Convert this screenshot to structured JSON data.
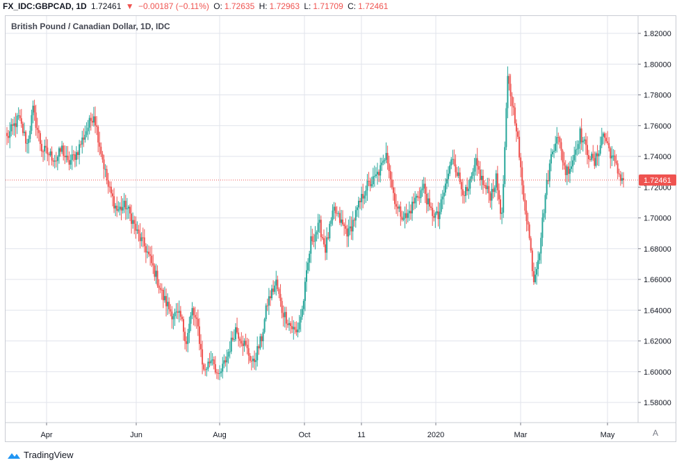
{
  "header": {
    "symbol": "FX_IDC:GBPCAD, 1D",
    "last": "1.72461",
    "change_arrow": "▼",
    "change": "−0.00187 (−0.11%)",
    "open_label": "O:",
    "open": "1.72635",
    "high_label": "H:",
    "high": "1.72963",
    "low_label": "L:",
    "low": "1.71709",
    "close_label": "C:",
    "close": "1.72461"
  },
  "legend": "British Pound / Canadian Dollar, 1D, IDC",
  "price_badge": "1.72461",
  "autoscale_label": "A",
  "footer": {
    "brand": "TradingView",
    "logo_icon": "tradingview-logo-icon"
  },
  "colors": {
    "up": "#26a69a",
    "down": "#ef5350",
    "grid": "#e0e3eb",
    "badge": "#ef5350"
  },
  "chart_data": {
    "type": "candlestick",
    "title": "British Pound / Canadian Dollar, 1D, IDC",
    "xlabel": "",
    "ylabel": "",
    "x_tick_labels": [
      "Apr",
      "Jun",
      "Aug",
      "Oct",
      "11",
      "2020",
      "Mar",
      "May"
    ],
    "y_tick_labels": [
      "1.82000",
      "1.80000",
      "1.78000",
      "1.76000",
      "1.74000",
      "1.72000",
      "1.70000",
      "1.68000",
      "1.66000",
      "1.64000",
      "1.62000",
      "1.60000",
      "1.58000"
    ],
    "ylim": [
      1.57,
      1.826
    ],
    "grid": true,
    "last_price": 1.72461,
    "date_range": [
      "2019-03",
      "2020-05"
    ],
    "close_path": [
      [
        0,
        1.752
      ],
      [
        8,
        1.765
      ],
      [
        14,
        1.748
      ],
      [
        18,
        1.77
      ],
      [
        24,
        1.745
      ],
      [
        28,
        1.742
      ],
      [
        34,
        1.738
      ],
      [
        38,
        1.745
      ],
      [
        42,
        1.735
      ],
      [
        48,
        1.742
      ],
      [
        54,
        1.755
      ],
      [
        60,
        1.768
      ],
      [
        64,
        1.748
      ],
      [
        70,
        1.72
      ],
      [
        76,
        1.705
      ],
      [
        82,
        1.708
      ],
      [
        86,
        1.7
      ],
      [
        90,
        1.69
      ],
      [
        96,
        1.68
      ],
      [
        102,
        1.665
      ],
      [
        108,
        1.648
      ],
      [
        114,
        1.638
      ],
      [
        120,
        1.635
      ],
      [
        124,
        1.62
      ],
      [
        128,
        1.64
      ],
      [
        132,
        1.628
      ],
      [
        136,
        1.6
      ],
      [
        142,
        1.61
      ],
      [
        146,
        1.595
      ],
      [
        152,
        1.61
      ],
      [
        158,
        1.628
      ],
      [
        164,
        1.618
      ],
      [
        170,
        1.605
      ],
      [
        176,
        1.622
      ],
      [
        180,
        1.645
      ],
      [
        186,
        1.658
      ],
      [
        190,
        1.64
      ],
      [
        196,
        1.63
      ],
      [
        200,
        1.625
      ],
      [
        204,
        1.64
      ],
      [
        210,
        1.685
      ],
      [
        216,
        1.695
      ],
      [
        220,
        1.68
      ],
      [
        226,
        1.705
      ],
      [
        232,
        1.695
      ],
      [
        236,
        1.69
      ],
      [
        242,
        1.705
      ],
      [
        248,
        1.72
      ],
      [
        254,
        1.725
      ],
      [
        260,
        1.735
      ],
      [
        262,
        1.745
      ],
      [
        266,
        1.72
      ],
      [
        270,
        1.705
      ],
      [
        276,
        1.7
      ],
      [
        282,
        1.712
      ],
      [
        288,
        1.72
      ],
      [
        292,
        1.705
      ],
      [
        298,
        1.7
      ],
      [
        304,
        1.725
      ],
      [
        308,
        1.74
      ],
      [
        314,
        1.72
      ],
      [
        318,
        1.715
      ],
      [
        324,
        1.735
      ],
      [
        330,
        1.72
      ],
      [
        334,
        1.715
      ],
      [
        338,
        1.725
      ],
      [
        342,
        1.7
      ],
      [
        346,
        1.79
      ],
      [
        352,
        1.76
      ],
      [
        356,
        1.72
      ],
      [
        360,
        1.695
      ],
      [
        364,
        1.66
      ],
      [
        368,
        1.68
      ],
      [
        372,
        1.715
      ],
      [
        376,
        1.74
      ],
      [
        380,
        1.755
      ],
      [
        386,
        1.73
      ],
      [
        390,
        1.735
      ],
      [
        396,
        1.755
      ],
      [
        400,
        1.745
      ],
      [
        406,
        1.735
      ],
      [
        412,
        1.755
      ],
      [
        416,
        1.745
      ],
      [
        422,
        1.73
      ],
      [
        426,
        1.724
      ]
    ]
  }
}
